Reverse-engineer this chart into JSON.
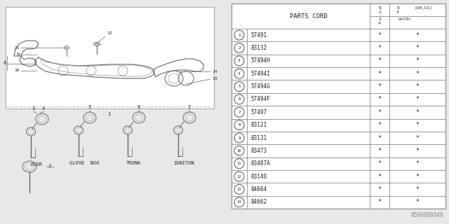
{
  "bg_color": "#e8e8e8",
  "text_color": "#222222",
  "footer_text": "A580000049",
  "table_header": "PARTS CORD",
  "parts": [
    {
      "num": "1",
      "code": "57491"
    },
    {
      "num": "2",
      "code": "83132"
    },
    {
      "num": "3",
      "code": "57494H"
    },
    {
      "num": "4",
      "code": "57494I"
    },
    {
      "num": "5",
      "code": "57494G"
    },
    {
      "num": "6",
      "code": "57494F"
    },
    {
      "num": "7",
      "code": "57497"
    },
    {
      "num": "8",
      "code": "83121"
    },
    {
      "num": "9",
      "code": "83131"
    },
    {
      "num": "10",
      "code": "83473"
    },
    {
      "num": "11",
      "code": "83487A"
    },
    {
      "num": "12",
      "code": "83140"
    },
    {
      "num": "13",
      "code": "84664"
    },
    {
      "num": "14",
      "code": "84662"
    }
  ],
  "labels": [
    "DOOR",
    "GLOVE  BOX",
    "TRUNK",
    "IGNITON"
  ],
  "lc": "#888888",
  "lw": 0.6
}
